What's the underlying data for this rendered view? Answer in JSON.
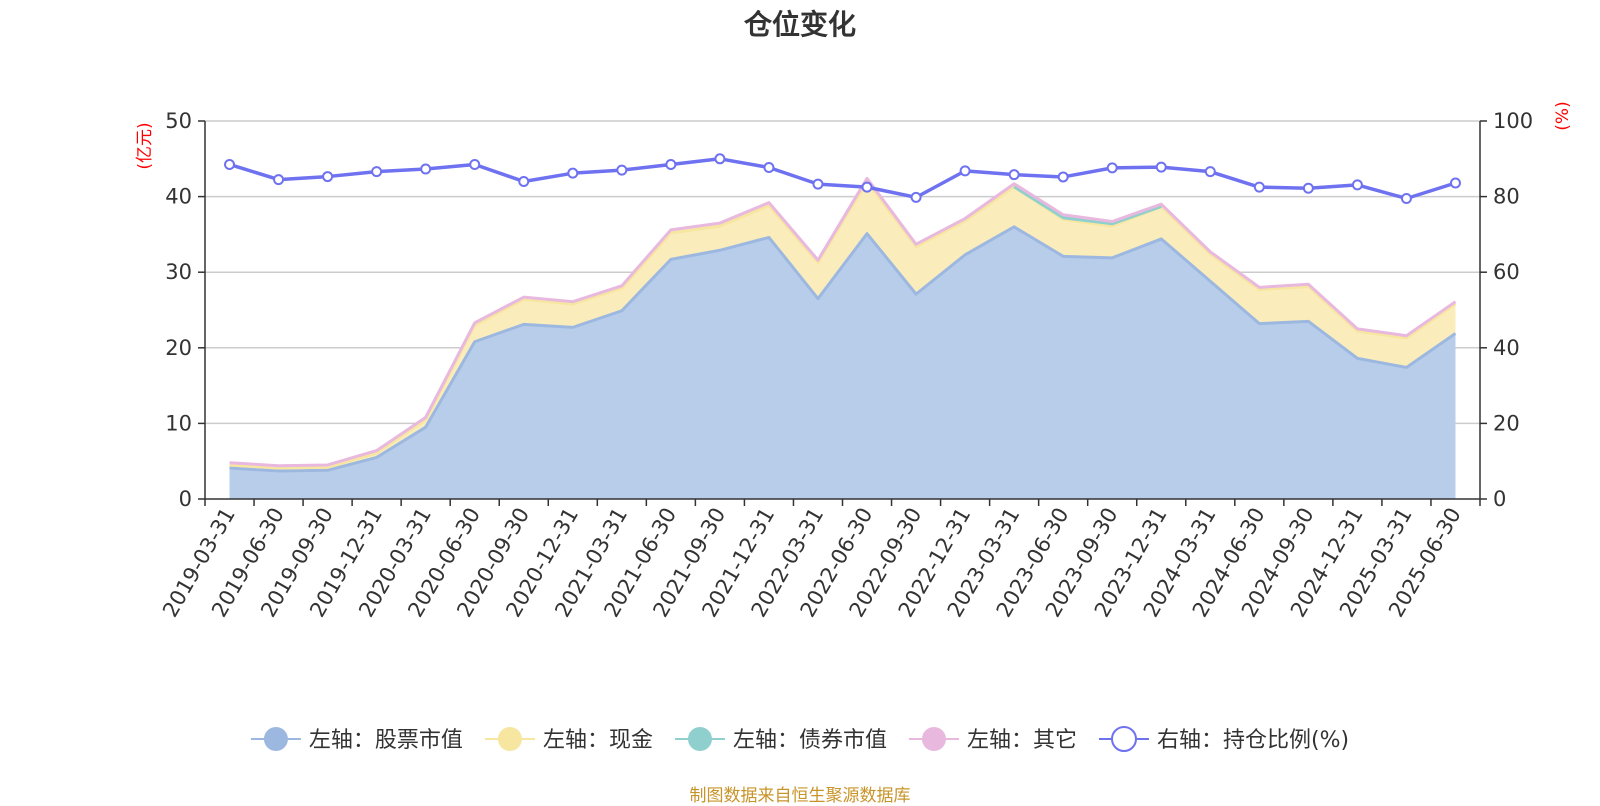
{
  "chart_data": {
    "type": "area",
    "title": "仓位变化",
    "left_unit": "(亿元)",
    "right_unit": "(%)",
    "ylim_left": [
      0,
      50
    ],
    "yticks_left": [
      0,
      10,
      20,
      30,
      40,
      50
    ],
    "ylim_right": [
      0,
      100
    ],
    "yticks_right": [
      0,
      20,
      40,
      60,
      80,
      100
    ],
    "grid": true,
    "legend_position": "bottom",
    "categories": [
      "2019-03-31",
      "2019-06-30",
      "2019-09-30",
      "2019-12-31",
      "2020-03-31",
      "2020-06-30",
      "2020-09-30",
      "2020-12-31",
      "2021-03-31",
      "2021-06-30",
      "2021-09-30",
      "2021-12-31",
      "2022-03-31",
      "2022-06-30",
      "2022-09-30",
      "2022-12-31",
      "2023-03-31",
      "2023-06-30",
      "2023-09-30",
      "2023-12-31",
      "2024-03-31",
      "2024-06-30",
      "2024-09-30",
      "2024-12-31",
      "2025-03-31",
      "2025-06-30"
    ],
    "series": [
      {
        "name": "左轴：股票市值",
        "axis": "left",
        "stack": true,
        "color": "#9db8e0",
        "fill": "#b8cdea",
        "values": [
          4.1,
          3.7,
          3.8,
          5.5,
          9.5,
          20.8,
          23.1,
          22.7,
          24.9,
          31.7,
          32.9,
          34.6,
          26.5,
          35.1,
          27.1,
          32.3,
          36.0,
          32.1,
          31.9,
          34.4,
          28.8,
          23.2,
          23.5,
          18.6,
          17.4,
          21.9
        ]
      },
      {
        "name": "左轴：现金",
        "axis": "left",
        "stack": true,
        "color": "#f7e6a0",
        "fill": "#faecbb",
        "values": [
          0.4,
          0.4,
          0.4,
          0.6,
          1.0,
          2.2,
          3.3,
          3.1,
          3.0,
          3.5,
          3.2,
          4.2,
          4.8,
          6.9,
          6.3,
          4.5,
          5.3,
          4.9,
          4.2,
          4.3,
          3.6,
          4.5,
          4.6,
          3.6,
          3.9,
          3.9
        ]
      },
      {
        "name": "左轴：债券市值",
        "axis": "left",
        "stack": true,
        "color": "#8fd0ce",
        "fill": "#b8e4e2",
        "values": [
          0,
          0,
          0,
          0,
          0,
          0,
          0,
          0,
          0,
          0,
          0,
          0,
          0,
          0,
          0,
          0,
          0,
          0.2,
          0.3,
          0,
          0,
          0,
          0,
          0,
          0,
          0
        ]
      },
      {
        "name": "左轴：其它",
        "axis": "left",
        "stack": true,
        "color": "#e8b8de",
        "fill": "#f0d0ea",
        "values": [
          0.3,
          0.3,
          0.3,
          0.3,
          0.3,
          0.3,
          0.3,
          0.3,
          0.3,
          0.4,
          0.4,
          0.4,
          0.3,
          0.4,
          0.3,
          0.3,
          0.4,
          0.4,
          0.3,
          0.3,
          0.3,
          0.3,
          0.3,
          0.3,
          0.3,
          0.3
        ]
      },
      {
        "name": "右轴：持仓比例(%)",
        "axis": "right",
        "stack": false,
        "color": "#6f72f0",
        "values": [
          88.5,
          84.5,
          85.3,
          86.6,
          87.3,
          88.5,
          84.0,
          86.2,
          87.0,
          88.5,
          90.0,
          87.7,
          83.3,
          82.5,
          79.8,
          86.8,
          85.8,
          85.2,
          87.6,
          87.8,
          86.6,
          82.5,
          82.2,
          83.1,
          79.5,
          83.6
        ]
      }
    ]
  },
  "footer": {
    "source": "制图数据来自恒生聚源数据库"
  }
}
